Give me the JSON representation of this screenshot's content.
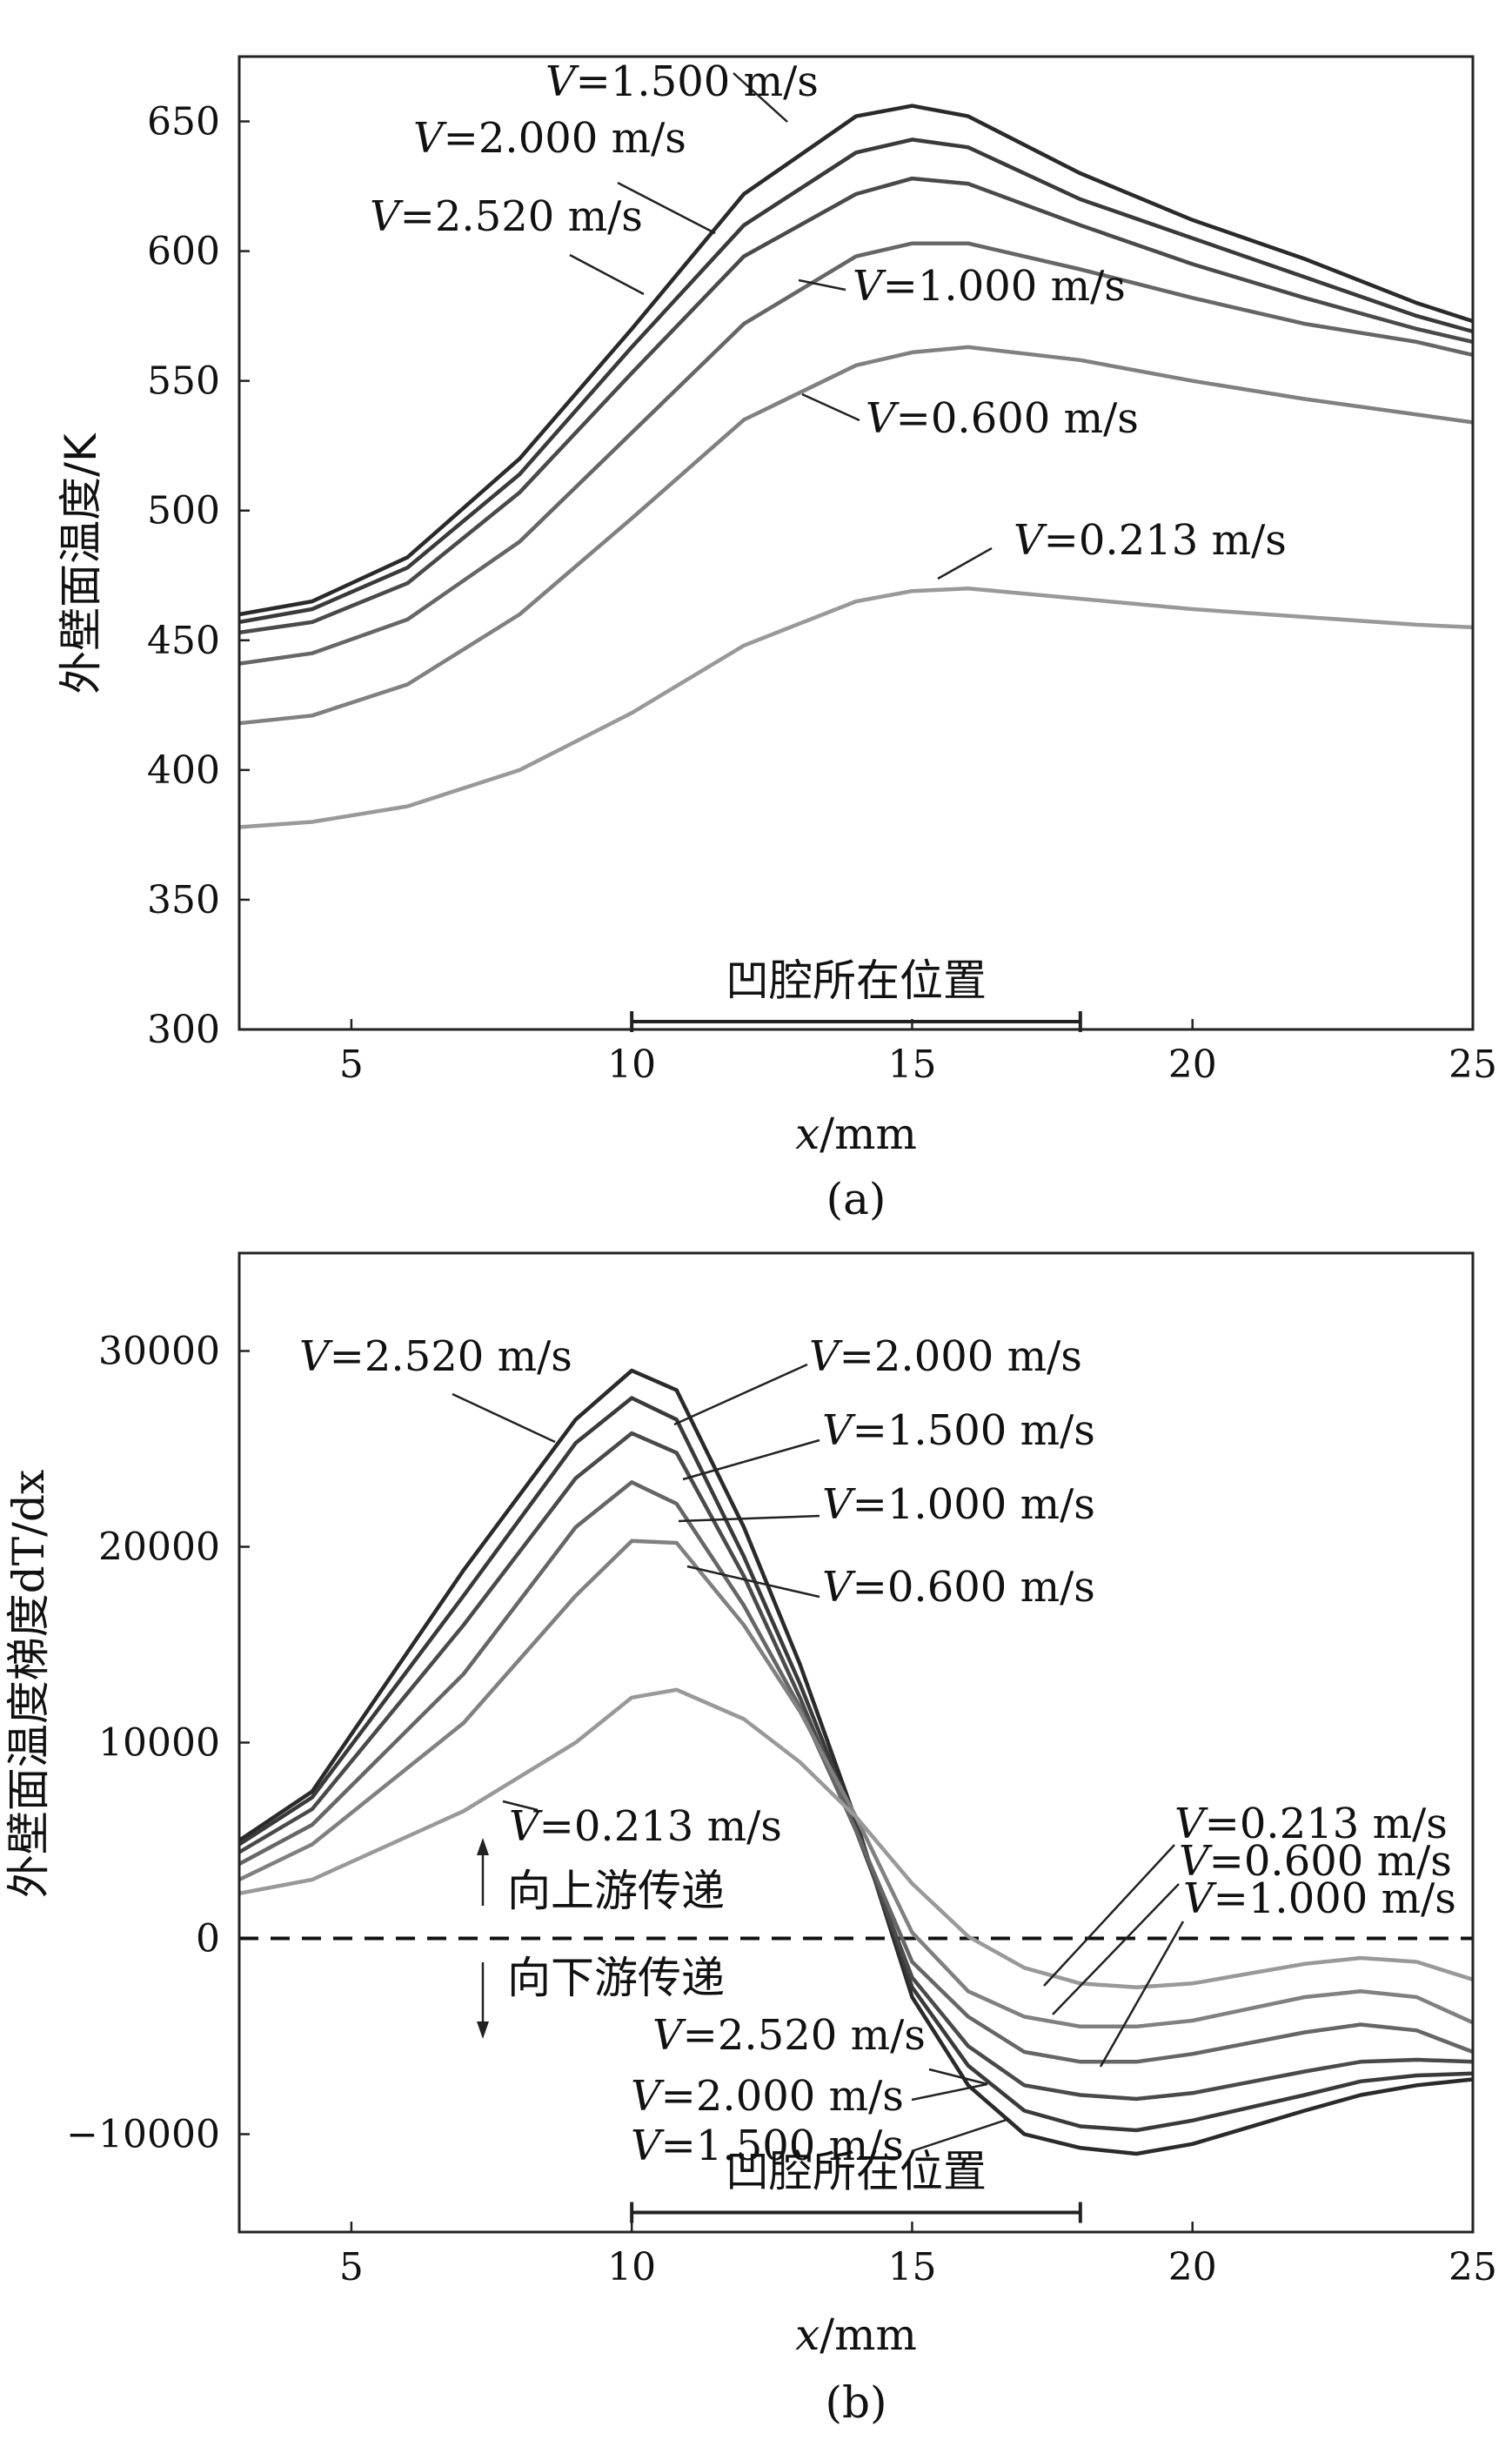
{
  "chart_data": [
    {
      "panel": "a",
      "type": "line",
      "caption": "(a)",
      "ylabel": "外壁面温度/K",
      "xlabel_var": "x",
      "xlabel_unit": "/mm",
      "xlim": [
        3,
        25
      ],
      "ylim": [
        300,
        675
      ],
      "xticks": [
        5,
        10,
        15,
        20,
        25
      ],
      "yticks": [
        300,
        350,
        400,
        450,
        500,
        550,
        600,
        650
      ],
      "cavity_label": "凹腔所在位置",
      "cavity_range": [
        10,
        18
      ],
      "cavity_y": 303,
      "label_var": "V",
      "series": [
        {
          "name": "=1.500 m/s",
          "color": "#2a2a2a",
          "x": [
            3,
            4.3,
            6,
            8,
            10,
            12,
            14,
            15,
            16,
            18,
            20,
            22,
            24,
            25
          ],
          "y": [
            460,
            465,
            482,
            520,
            570,
            622,
            652,
            656,
            652,
            630,
            612,
            597,
            580,
            573
          ]
        },
        {
          "name": "=2.000 m/s",
          "color": "#3a3a3a",
          "x": [
            3,
            4.3,
            6,
            8,
            10,
            12,
            14,
            15,
            16,
            18,
            20,
            22,
            24,
            25
          ],
          "y": [
            457,
            462,
            478,
            514,
            563,
            610,
            638,
            643,
            640,
            620,
            605,
            590,
            575,
            569
          ]
        },
        {
          "name": "=2.520 m/s",
          "color": "#4a4a4a",
          "x": [
            3,
            4.3,
            6,
            8,
            10,
            12,
            14,
            15,
            16,
            18,
            20,
            22,
            24,
            25
          ],
          "y": [
            453,
            457,
            472,
            507,
            553,
            598,
            622,
            628,
            626,
            610,
            595,
            582,
            570,
            565
          ]
        },
        {
          "name": "=1.000 m/s",
          "color": "#666666",
          "x": [
            3,
            4.3,
            6,
            8,
            10,
            12,
            14,
            15,
            16,
            18,
            20,
            22,
            24,
            25
          ],
          "y": [
            441,
            445,
            458,
            488,
            530,
            572,
            598,
            603,
            603,
            593,
            582,
            572,
            565,
            560
          ]
        },
        {
          "name": "=0.600 m/s",
          "color": "#808080",
          "x": [
            3,
            4.3,
            6,
            8,
            10,
            12,
            14,
            15,
            16,
            18,
            20,
            22,
            24,
            25
          ],
          "y": [
            418,
            421,
            433,
            460,
            497,
            535,
            556,
            561,
            563,
            558,
            550,
            543,
            537,
            534
          ]
        },
        {
          "name": "=0.213 m/s",
          "color": "#999999",
          "x": [
            3,
            4.3,
            6,
            8,
            10,
            12,
            14,
            15,
            16,
            18,
            20,
            22,
            24,
            25
          ],
          "y": [
            378,
            380,
            386,
            400,
            422,
            448,
            465,
            469,
            470,
            466,
            462,
            459,
            456,
            455
          ]
        }
      ]
    },
    {
      "panel": "b",
      "type": "line",
      "caption": "(b)",
      "ylabel_prefix": "外壁面温度梯度",
      "ylabel_expr": "dT/dx",
      "xlabel_var": "x",
      "xlabel_unit": "/mm",
      "xlim": [
        3,
        25
      ],
      "ylim": [
        -15000,
        35000
      ],
      "xticks": [
        5,
        10,
        15,
        20,
        25
      ],
      "yticks": [
        -10000,
        0,
        10000,
        20000,
        30000
      ],
      "upstream_label": "向上游传递",
      "downstream_label": "向下游传递",
      "cavity_label": "凹腔所在位置",
      "cavity_range": [
        10,
        18
      ],
      "cavity_y": -14000,
      "label_var": "V",
      "series": [
        {
          "name": "=2.520 m/s",
          "color": "#2a2a2a",
          "x": [
            3,
            4.3,
            7,
            9,
            10,
            10.8,
            12,
            13,
            14,
            15,
            16,
            17,
            18,
            19,
            20,
            22,
            23,
            24,
            25
          ],
          "y": [
            5000,
            7500,
            18800,
            26500,
            29000,
            28000,
            21000,
            14000,
            6000,
            -3000,
            -7500,
            -10000,
            -10700,
            -11000,
            -10500,
            -8800,
            -8000,
            -7500,
            -7200
          ]
        },
        {
          "name": "=2.000 m/s",
          "color": "#3a3a3a",
          "x": [
            3,
            4.3,
            7,
            9,
            10,
            10.8,
            12,
            13,
            14,
            15,
            16,
            17,
            18,
            19,
            20,
            22,
            23,
            24,
            25
          ],
          "y": [
            4800,
            7200,
            17500,
            25300,
            27600,
            26500,
            19500,
            13000,
            5800,
            -2500,
            -6500,
            -8800,
            -9600,
            -9800,
            -9300,
            -8000,
            -7300,
            -7000,
            -6900
          ]
        },
        {
          "name": "=1.500 m/s",
          "color": "#4a4a4a",
          "x": [
            3,
            4.3,
            7,
            9,
            10,
            10.8,
            12,
            13,
            14,
            15,
            16,
            17,
            18,
            19,
            20,
            22,
            23,
            24,
            25
          ],
          "y": [
            4400,
            6600,
            16000,
            23500,
            25800,
            24800,
            18500,
            12300,
            5500,
            -2000,
            -5500,
            -7500,
            -8000,
            -8200,
            -7900,
            -6800,
            -6300,
            -6200,
            -6300
          ]
        },
        {
          "name": "=1.000 m/s",
          "color": "#666666",
          "x": [
            3,
            4.3,
            7,
            9,
            10,
            10.8,
            12,
            13,
            14,
            15,
            16,
            17,
            18,
            19,
            20,
            22,
            23,
            24,
            25
          ],
          "y": [
            3800,
            5800,
            13500,
            21000,
            23300,
            22200,
            17000,
            11800,
            5500,
            -1200,
            -4000,
            -5800,
            -6300,
            -6300,
            -5900,
            -4800,
            -4400,
            -4700,
            -5800
          ]
        },
        {
          "name": "=0.600 m/s",
          "color": "#808080",
          "x": [
            3,
            4.3,
            7,
            9,
            10,
            10.8,
            12,
            13,
            14,
            15,
            16,
            17,
            18,
            19,
            20,
            22,
            23,
            24,
            25
          ],
          "y": [
            3000,
            4800,
            11000,
            17500,
            20300,
            20200,
            16000,
            11600,
            6200,
            300,
            -2700,
            -4000,
            -4500,
            -4500,
            -4200,
            -3000,
            -2700,
            -3000,
            -4300
          ]
        },
        {
          "name": "=0.213 m/s",
          "color": "#999999",
          "x": [
            3,
            4.3,
            7,
            9,
            10,
            10.8,
            12,
            13,
            14,
            15,
            16,
            17,
            18,
            19,
            20,
            22,
            23,
            24,
            25
          ],
          "y": [
            2300,
            3000,
            6500,
            10000,
            12300,
            12700,
            11200,
            9000,
            6200,
            2800,
            100,
            -1500,
            -2300,
            -2500,
            -2300,
            -1300,
            -1000,
            -1200,
            -2100
          ]
        }
      ]
    }
  ]
}
